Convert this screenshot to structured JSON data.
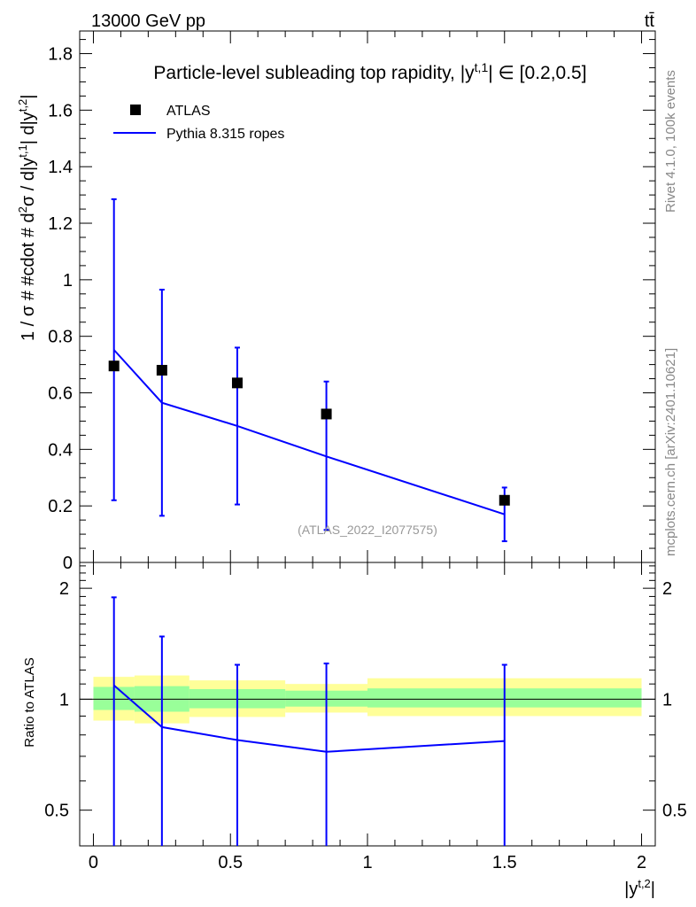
{
  "header": {
    "energy_label": "13000 GeV pp",
    "process_label": "tt̄"
  },
  "side_labels": {
    "rivet": "Rivet 4.1.0,  100k events",
    "source": "mcplots.cern.ch [arXiv:2401.10621]"
  },
  "chart_data": [
    {
      "type": "scatter",
      "title": "Particle-level subleading top rapidity, |y^{t,1}| ∈ [0.2,0.5]",
      "ylabel": "1 / σ # #cdot # d²σ / d|y^{t,1}| d|y^{t,2}|",
      "watermark": "(ATLAS_2022_I2077575)",
      "ylim": [
        0,
        1.88
      ],
      "yticks": [
        0,
        0.2,
        0.4,
        0.6,
        0.8,
        1,
        1.2,
        1.4,
        1.6,
        1.8
      ],
      "ytick_labels": [
        "0",
        "0.2",
        "0.4",
        "0.6",
        "0.8",
        "1",
        "1.2",
        "1.4",
        "1.6",
        "1.8"
      ],
      "legend_position": "top-left",
      "series": [
        {
          "name": "ATLAS",
          "kind": "data",
          "color": "#000000",
          "x": [
            0.075,
            0.25,
            0.525,
            0.85,
            1.5
          ],
          "y": [
            0.695,
            0.68,
            0.635,
            0.525,
            0.22
          ],
          "err_lo": [
            0.475,
            0.515,
            0.43,
            0.41,
            0.145
          ],
          "err_hi": [
            0.59,
            0.285,
            0.125,
            0.115,
            0.045
          ]
        },
        {
          "name": "Pythia 8.315 ropes",
          "kind": "mc",
          "color": "#0000ff",
          "x": [
            0.075,
            0.25,
            0.525,
            0.85,
            1.5
          ],
          "y": [
            0.752,
            0.565,
            0.483,
            0.375,
            0.17
          ]
        }
      ]
    },
    {
      "type": "line",
      "ylabel": "Ratio to ATLAS",
      "xlabel": "|y^{t,2}|",
      "xlim": [
        -0.05,
        2.05
      ],
      "ylim": [
        0.4,
        2.35
      ],
      "xticks": [
        0,
        0.5,
        1,
        1.5,
        2
      ],
      "xtick_labels": [
        "0",
        "0.5",
        "1",
        "1.5",
        "2"
      ],
      "yticks": [
        0.5,
        1,
        2
      ],
      "ytick_labels": [
        "0.5",
        "1",
        "2"
      ],
      "reference_line": 1,
      "bands": {
        "bin_edges": [
          0,
          0.15,
          0.35,
          0.7,
          1.0,
          2.0
        ],
        "yellow_lo": [
          0.875,
          0.86,
          0.895,
          0.92,
          0.9,
          0.87
        ],
        "yellow_hi": [
          1.15,
          1.16,
          1.125,
          1.1,
          1.14,
          1.17
        ],
        "green_lo": [
          0.935,
          0.925,
          0.945,
          0.955,
          0.95,
          0.93
        ],
        "green_hi": [
          1.08,
          1.085,
          1.065,
          1.055,
          1.07,
          1.085
        ]
      },
      "series": [
        {
          "name": "Pythia 8.315 ropes",
          "color": "#0000ff",
          "x": [
            0.075,
            0.25,
            0.525,
            0.85,
            1.5
          ],
          "y": [
            1.09,
            0.84,
            0.775,
            0.72,
            0.77
          ],
          "err_lo": [
            0.4,
            0.4,
            0.4,
            0.4,
            0.4
          ],
          "err_hi": [
            1.89,
            1.48,
            1.24,
            1.25,
            1.24
          ]
        }
      ]
    }
  ]
}
